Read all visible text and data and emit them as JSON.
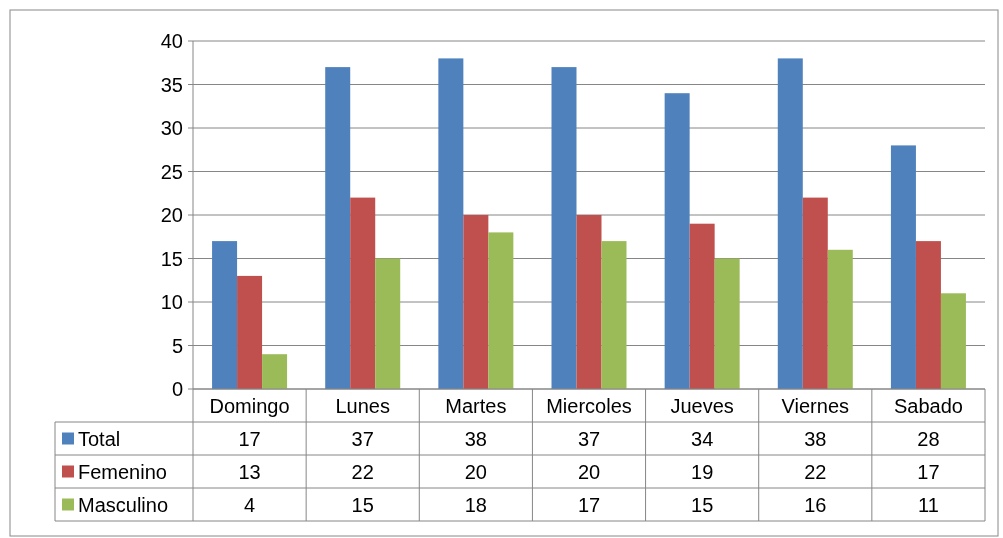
{
  "chart_data": {
    "type": "bar",
    "categories": [
      "Domingo",
      "Lunes",
      "Martes",
      "Miercoles",
      "Jueves",
      "Viernes",
      "Sabado"
    ],
    "series": [
      {
        "name": "Total",
        "color": "#4f81bd",
        "values": [
          17,
          37,
          38,
          37,
          34,
          38,
          28
        ]
      },
      {
        "name": "Femenino",
        "color": "#c0504d",
        "values": [
          13,
          22,
          20,
          20,
          19,
          22,
          17
        ]
      },
      {
        "name": "Masculino",
        "color": "#9bbb59",
        "values": [
          4,
          15,
          18,
          17,
          15,
          16,
          11
        ]
      }
    ],
    "ylim": [
      0,
      40
    ],
    "yticks": [
      0,
      5,
      10,
      15,
      20,
      25,
      30,
      35,
      40
    ],
    "grid": "y",
    "legend": "bottom",
    "data_labels": true
  }
}
